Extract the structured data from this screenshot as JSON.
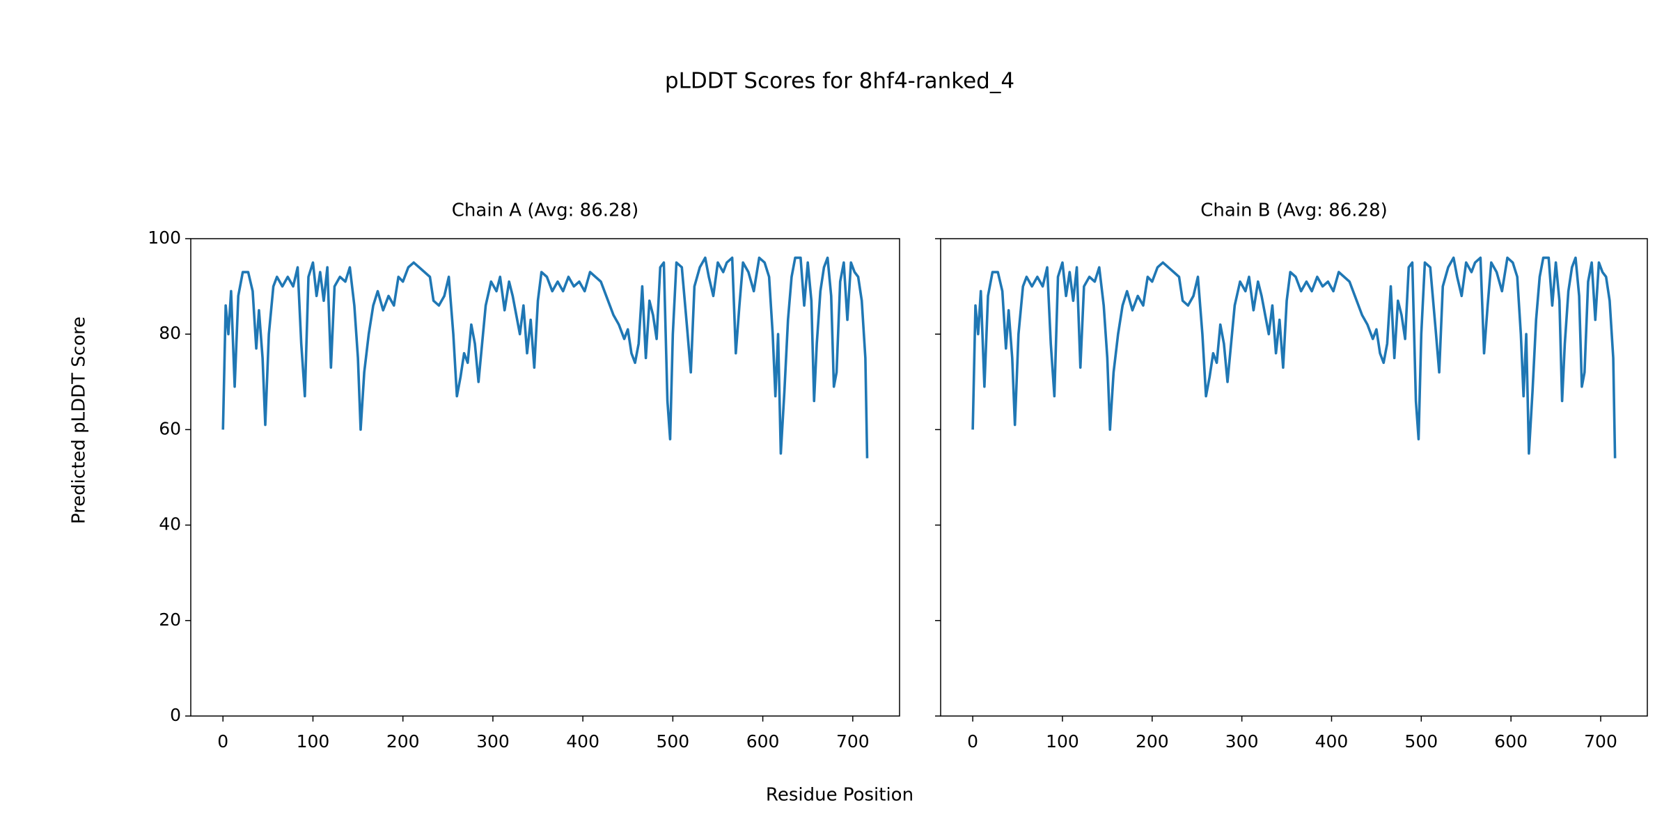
{
  "figure": {
    "title": "pLDDT Scores for 8hf4-ranked_4",
    "x_label": "Residue Position",
    "y_label": "Predicted pLDDT Score"
  },
  "chart_data": [
    {
      "type": "line",
      "title": "Chain A (Avg: 86.28)",
      "xlim": [
        -35.8,
        752
      ],
      "ylim": [
        0,
        100
      ],
      "xticks": [
        0,
        100,
        200,
        300,
        400,
        500,
        600,
        700
      ],
      "yticks": [
        0,
        20,
        40,
        60,
        80,
        100
      ],
      "ytick_labels": true,
      "x": [
        0,
        3,
        6,
        9,
        13,
        17,
        22,
        28,
        33,
        37,
        40,
        44,
        47,
        51,
        56,
        60,
        66,
        72,
        78,
        83,
        87,
        91,
        95,
        100,
        104,
        108,
        112,
        116,
        120,
        124,
        130,
        136,
        141,
        146,
        150,
        153,
        157,
        162,
        167,
        172,
        178,
        184,
        190,
        195,
        200,
        206,
        212,
        218,
        224,
        230,
        234,
        240,
        246,
        251,
        256,
        260,
        264,
        268,
        272,
        276,
        280,
        284,
        288,
        292,
        298,
        304,
        308,
        313,
        318,
        322,
        326,
        330,
        334,
        338,
        342,
        346,
        350,
        354,
        360,
        366,
        372,
        378,
        384,
        390,
        396,
        402,
        408,
        414,
        420,
        426,
        430,
        434,
        440,
        446,
        450,
        454,
        458,
        462,
        466,
        470,
        474,
        478,
        482,
        486,
        490,
        494,
        497,
        500,
        504,
        510,
        516,
        520,
        524,
        530,
        536,
        540,
        545,
        550,
        556,
        560,
        566,
        570,
        574,
        578,
        584,
        590,
        596,
        602,
        607,
        611,
        614,
        617,
        620,
        624,
        628,
        632,
        636,
        642,
        646,
        650,
        654,
        657,
        660,
        664,
        668,
        672,
        676,
        679,
        682,
        686,
        690,
        694,
        698,
        702,
        706,
        710,
        714,
        716
      ],
      "series": [
        {
          "name": "Chain A",
          "color": "#1f77b4",
          "values": [
            60,
            86,
            80,
            89,
            69,
            88,
            93,
            93,
            89,
            77,
            85,
            75,
            61,
            80,
            90,
            92,
            90,
            92,
            90,
            94,
            78,
            67,
            92,
            95,
            88,
            93,
            87,
            94,
            73,
            90,
            92,
            91,
            94,
            86,
            75,
            60,
            72,
            80,
            86,
            89,
            85,
            88,
            86,
            92,
            91,
            94,
            95,
            94,
            93,
            92,
            87,
            86,
            88,
            92,
            80,
            67,
            71,
            76,
            74,
            82,
            78,
            70,
            78,
            86,
            91,
            89,
            92,
            85,
            91,
            88,
            84,
            80,
            86,
            76,
            83,
            73,
            87,
            93,
            92,
            89,
            91,
            89,
            92,
            90,
            91,
            89,
            93,
            92,
            91,
            88,
            86,
            84,
            82,
            79,
            81,
            76,
            74,
            78,
            90,
            75,
            87,
            84,
            79,
            94,
            95,
            66,
            58,
            80,
            95,
            94,
            81,
            72,
            90,
            94,
            96,
            92,
            88,
            95,
            93,
            95,
            96,
            76,
            86,
            95,
            93,
            89,
            96,
            95,
            92,
            80,
            67,
            80,
            55,
            68,
            83,
            92,
            96,
            96,
            86,
            95,
            87,
            66,
            78,
            89,
            94,
            96,
            88,
            69,
            72,
            91,
            95,
            83,
            95,
            93,
            92,
            87,
            75,
            54
          ]
        }
      ]
    },
    {
      "type": "line",
      "title": "Chain B (Avg: 86.28)",
      "xlim": [
        -35.8,
        752
      ],
      "ylim": [
        0,
        100
      ],
      "xticks": [
        0,
        100,
        200,
        300,
        400,
        500,
        600,
        700
      ],
      "yticks": [
        0,
        20,
        40,
        60,
        80,
        100
      ],
      "ytick_labels": false,
      "x": [
        0,
        3,
        6,
        9,
        13,
        17,
        22,
        28,
        33,
        37,
        40,
        44,
        47,
        51,
        56,
        60,
        66,
        72,
        78,
        83,
        87,
        91,
        95,
        100,
        104,
        108,
        112,
        116,
        120,
        124,
        130,
        136,
        141,
        146,
        150,
        153,
        157,
        162,
        167,
        172,
        178,
        184,
        190,
        195,
        200,
        206,
        212,
        218,
        224,
        230,
        234,
        240,
        246,
        251,
        256,
        260,
        264,
        268,
        272,
        276,
        280,
        284,
        288,
        292,
        298,
        304,
        308,
        313,
        318,
        322,
        326,
        330,
        334,
        338,
        342,
        346,
        350,
        354,
        360,
        366,
        372,
        378,
        384,
        390,
        396,
        402,
        408,
        414,
        420,
        426,
        430,
        434,
        440,
        446,
        450,
        454,
        458,
        462,
        466,
        470,
        474,
        478,
        482,
        486,
        490,
        494,
        497,
        500,
        504,
        510,
        516,
        520,
        524,
        530,
        536,
        540,
        545,
        550,
        556,
        560,
        566,
        570,
        574,
        578,
        584,
        590,
        596,
        602,
        607,
        611,
        614,
        617,
        620,
        624,
        628,
        632,
        636,
        642,
        646,
        650,
        654,
        657,
        660,
        664,
        668,
        672,
        676,
        679,
        682,
        686,
        690,
        694,
        698,
        702,
        706,
        710,
        714,
        716
      ],
      "series": [
        {
          "name": "Chain B",
          "color": "#1f77b4",
          "values": [
            60,
            86,
            80,
            89,
            69,
            88,
            93,
            93,
            89,
            77,
            85,
            75,
            61,
            80,
            90,
            92,
            90,
            92,
            90,
            94,
            78,
            67,
            92,
            95,
            88,
            93,
            87,
            94,
            73,
            90,
            92,
            91,
            94,
            86,
            75,
            60,
            72,
            80,
            86,
            89,
            85,
            88,
            86,
            92,
            91,
            94,
            95,
            94,
            93,
            92,
            87,
            86,
            88,
            92,
            80,
            67,
            71,
            76,
            74,
            82,
            78,
            70,
            78,
            86,
            91,
            89,
            92,
            85,
            91,
            88,
            84,
            80,
            86,
            76,
            83,
            73,
            87,
            93,
            92,
            89,
            91,
            89,
            92,
            90,
            91,
            89,
            93,
            92,
            91,
            88,
            86,
            84,
            82,
            79,
            81,
            76,
            74,
            78,
            90,
            75,
            87,
            84,
            79,
            94,
            95,
            66,
            58,
            80,
            95,
            94,
            81,
            72,
            90,
            94,
            96,
            92,
            88,
            95,
            93,
            95,
            96,
            76,
            86,
            95,
            93,
            89,
            96,
            95,
            92,
            80,
            67,
            80,
            55,
            68,
            83,
            92,
            96,
            96,
            86,
            95,
            87,
            66,
            78,
            89,
            94,
            96,
            88,
            69,
            72,
            91,
            95,
            83,
            95,
            93,
            92,
            87,
            75,
            54
          ]
        }
      ]
    }
  ]
}
